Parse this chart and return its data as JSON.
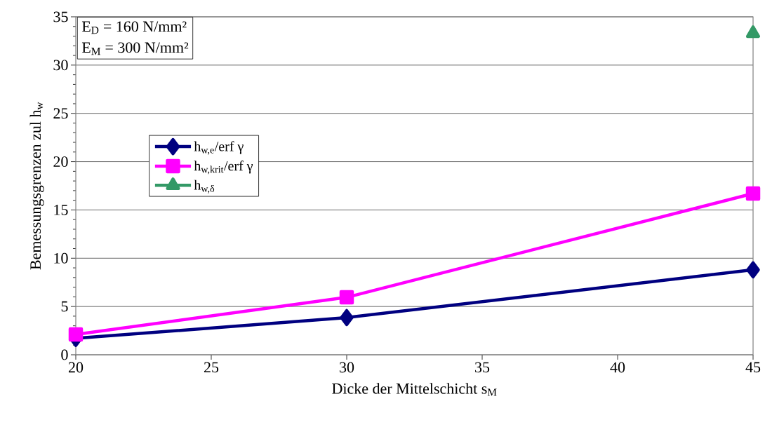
{
  "chart_data": {
    "type": "line",
    "xlabel": "Dicke der Mittelschicht s$_{M}$",
    "ylabel": "Bemessungsgrenzen zul h$_{w}$",
    "annotations": [
      "E$_{D}$ = 160 N/mm²",
      "E$_{M}$ = 300 N/mm²"
    ],
    "x": [
      20,
      30,
      45
    ],
    "series": [
      {
        "name": "h$_{w,e}$/erf γ",
        "color": "#000080",
        "marker": "diamond",
        "values": [
          1.7,
          3.85,
          8.8
        ]
      },
      {
        "name": "h$_{w,krit}$/erf γ",
        "color": "#ff00ff",
        "marker": "square",
        "values": [
          2.1,
          5.95,
          16.7
        ]
      },
      {
        "name": "h$_{w,δ}$",
        "color": "#339966",
        "marker": "triangle",
        "values": [
          null,
          null,
          33.3
        ]
      }
    ],
    "xlim": [
      20,
      45
    ],
    "xticks": [
      20,
      25,
      30,
      35,
      40,
      45
    ],
    "ylim": [
      0,
      35
    ],
    "yticks": [
      0,
      5,
      10,
      15,
      20,
      25,
      30,
      35
    ],
    "grid": "y",
    "legend": "left",
    "line_style": "solid"
  }
}
